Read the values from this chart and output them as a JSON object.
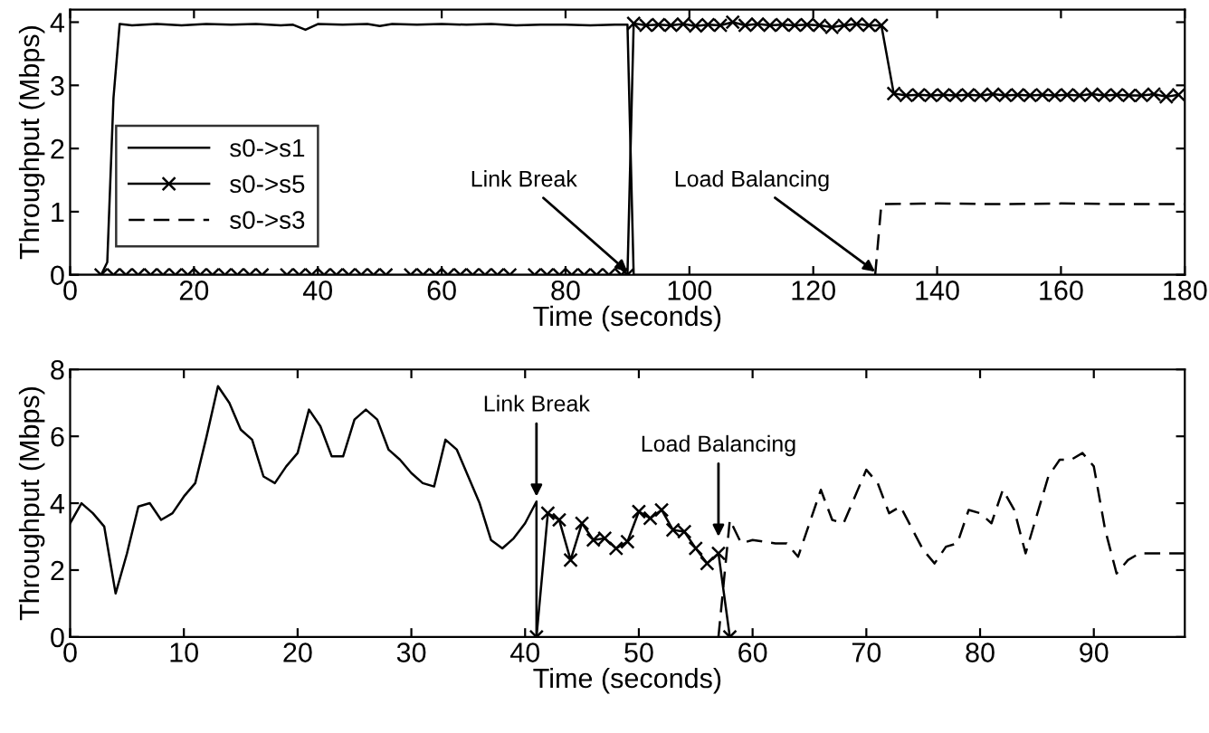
{
  "chart_data": [
    {
      "type": "line",
      "xlabel": "Time (seconds)",
      "ylabel": "Throughput (Mbps)",
      "xlim": [
        0,
        180
      ],
      "ylim": [
        0,
        4.2
      ],
      "xticks": [
        0,
        20,
        40,
        60,
        80,
        100,
        120,
        140,
        160,
        180
      ],
      "yticks": [
        0,
        1,
        2,
        3,
        4
      ],
      "grid": false,
      "legend": "lower left",
      "annotations": [
        {
          "text": "Link Break",
          "x": 90,
          "y": 0.05
        },
        {
          "text": "Load Balancing",
          "x": 130,
          "y": 0.05
        }
      ],
      "series": [
        {
          "name": "s0->s1",
          "color": "#000000",
          "line_style": "solid",
          "marker": "none",
          "x": [
            0,
            5,
            6,
            7,
            8,
            10,
            14,
            18,
            22,
            26,
            30,
            34,
            36,
            38,
            40,
            44,
            48,
            50,
            52,
            56,
            60,
            64,
            68,
            72,
            76,
            80,
            84,
            88,
            90,
            91,
            100,
            140,
            180
          ],
          "values": [
            0,
            0,
            0.2,
            2.8,
            3.97,
            3.95,
            3.97,
            3.95,
            3.97,
            3.96,
            3.97,
            3.95,
            3.96,
            3.88,
            3.97,
            3.96,
            3.97,
            3.94,
            3.97,
            3.96,
            3.97,
            3.96,
            3.97,
            3.95,
            3.96,
            3.96,
            3.95,
            3.96,
            3.96,
            0,
            0,
            0,
            0
          ]
        },
        {
          "name": "s0->s5",
          "color": "#000000",
          "line_style": "solid",
          "marker": "cross",
          "x": [
            5,
            7,
            9,
            11,
            13,
            15,
            17,
            19,
            21,
            23,
            25,
            27,
            29,
            31,
            35,
            37,
            39,
            41,
            43,
            45,
            47,
            49,
            51,
            55,
            57,
            59,
            61,
            63,
            65,
            67,
            69,
            71,
            75,
            77,
            79,
            81,
            83,
            85,
            87,
            89,
            90,
            91,
            93,
            95,
            97,
            99,
            101,
            103,
            105,
            107,
            109,
            111,
            113,
            115,
            117,
            119,
            121,
            123,
            125,
            127,
            129,
            131,
            133,
            135,
            137,
            139,
            141,
            143,
            145,
            147,
            149,
            151,
            153,
            155,
            157,
            159,
            161,
            163,
            165,
            167,
            169,
            171,
            173,
            175,
            177,
            179
          ],
          "values": [
            0,
            0,
            0,
            0,
            0,
            0,
            0,
            0,
            0,
            0,
            0,
            0,
            0,
            0,
            0,
            0,
            0,
            0,
            0,
            0,
            0,
            0,
            0,
            0,
            0,
            0,
            0,
            0,
            0,
            0,
            0,
            0,
            0,
            0,
            0,
            0,
            0,
            0,
            0,
            0,
            0,
            3.98,
            3.95,
            3.96,
            3.95,
            3.97,
            3.94,
            3.96,
            3.95,
            4.0,
            3.95,
            3.97,
            3.95,
            3.96,
            3.95,
            3.96,
            3.95,
            3.92,
            3.95,
            3.97,
            3.95,
            3.95,
            2.87,
            2.84,
            2.85,
            2.84,
            2.85,
            2.84,
            2.85,
            2.84,
            2.86,
            2.84,
            2.85,
            2.84,
            2.85,
            2.84,
            2.85,
            2.84,
            2.86,
            2.84,
            2.85,
            2.84,
            2.84,
            2.86,
            2.82,
            2.85
          ]
        },
        {
          "name": "s0->s3",
          "color": "#000000",
          "line_style": "dashed",
          "marker": "none",
          "x": [
            130,
            131,
            140,
            150,
            160,
            170,
            180
          ],
          "values": [
            0,
            1.12,
            1.13,
            1.12,
            1.13,
            1.12,
            1.12
          ]
        }
      ]
    },
    {
      "type": "line",
      "xlabel": "Time (seconds)",
      "ylabel": "Throughput (Mbps)",
      "xlim": [
        0,
        98
      ],
      "ylim": [
        0,
        8
      ],
      "xticks": [
        0,
        10,
        20,
        30,
        40,
        50,
        60,
        70,
        80,
        90
      ],
      "yticks": [
        0,
        2,
        4,
        6,
        8
      ],
      "grid": false,
      "legend": false,
      "annotations": [
        {
          "text": "Link Break",
          "x": 41,
          "y": 4.2
        },
        {
          "text": "Load Balancing",
          "x": 57,
          "y": 3.0
        }
      ],
      "series": [
        {
          "color": "#000000",
          "line_style": "solid",
          "marker": "none",
          "x": [
            0,
            1,
            2,
            3,
            4,
            5,
            6,
            7,
            8,
            9,
            10,
            11,
            12,
            13,
            14,
            15,
            16,
            17,
            18,
            19,
            20,
            21,
            22,
            23,
            24,
            25,
            26,
            27,
            28,
            29,
            30,
            31,
            32,
            33,
            34,
            35,
            36,
            37,
            38,
            39,
            40,
            41,
            41
          ],
          "values": [
            3.4,
            4.0,
            3.7,
            3.3,
            1.3,
            2.5,
            3.9,
            4.0,
            3.5,
            3.7,
            4.2,
            4.6,
            6.0,
            7.5,
            7.0,
            6.2,
            5.9,
            4.8,
            4.6,
            5.1,
            5.5,
            6.8,
            6.3,
            5.4,
            5.4,
            6.5,
            6.8,
            6.5,
            5.6,
            5.3,
            4.9,
            4.6,
            4.5,
            5.9,
            5.6,
            4.8,
            4.0,
            2.9,
            2.65,
            2.95,
            3.4,
            4.05,
            0
          ]
        },
        {
          "color": "#000000",
          "line_style": "solid",
          "marker": "cross",
          "x": [
            41,
            42,
            43,
            44,
            45,
            46,
            47,
            48,
            49,
            50,
            51,
            52,
            53,
            54,
            55,
            56,
            57,
            58
          ],
          "values": [
            0,
            3.7,
            3.5,
            2.3,
            3.4,
            2.9,
            2.95,
            2.65,
            2.85,
            3.75,
            3.55,
            3.8,
            3.2,
            3.15,
            2.65,
            2.2,
            2.5,
            0
          ]
        },
        {
          "color": "#000000",
          "line_style": "dashed",
          "marker": "none",
          "x": [
            57,
            58,
            59,
            60,
            62,
            63,
            64,
            66,
            67,
            68,
            70,
            71,
            72,
            73,
            75,
            76,
            77,
            78,
            79,
            80,
            81,
            82,
            83,
            84,
            86,
            87,
            88,
            89,
            90,
            91,
            92,
            93,
            94,
            96,
            98
          ],
          "values": [
            0,
            3.5,
            2.8,
            2.9,
            2.8,
            2.8,
            2.4,
            4.4,
            3.5,
            3.4,
            5.0,
            4.6,
            3.7,
            3.9,
            2.6,
            2.2,
            2.7,
            2.8,
            3.8,
            3.7,
            3.4,
            4.4,
            3.8,
            2.5,
            4.8,
            5.3,
            5.3,
            5.5,
            5.1,
            3.2,
            1.9,
            2.3,
            2.5,
            2.5,
            2.5
          ]
        }
      ]
    }
  ]
}
